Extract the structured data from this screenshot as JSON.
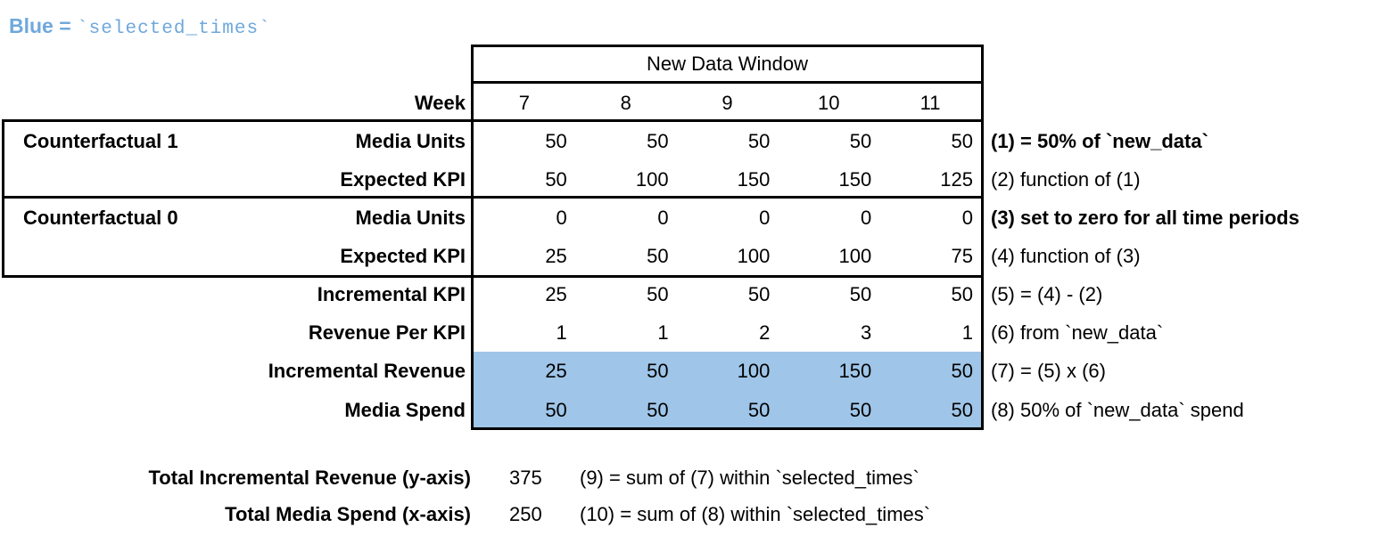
{
  "legend": {
    "blue_label": "Blue = ",
    "blue_code": "`selected_times`"
  },
  "colors": {
    "title_blue": "#6FA8DC",
    "highlight_blue": "#9FC5E8",
    "border": "#000000"
  },
  "table": {
    "window_header": "New Data Window",
    "week_label": "Week",
    "weeks": [
      "7",
      "8",
      "9",
      "10",
      "11"
    ],
    "groups": [
      {
        "label": "Counterfactual 1"
      },
      {
        "label": "Counterfactual 0"
      }
    ],
    "rows": [
      {
        "label": "Media Units",
        "cells": [
          "50",
          "50",
          "50",
          "50",
          "50"
        ],
        "annotation": "(1) = 50% of `new_data`"
      },
      {
        "label": "Expected KPI",
        "cells": [
          "50",
          "100",
          "150",
          "150",
          "125"
        ],
        "annotation": "(2) function of (1)"
      },
      {
        "label": "Media Units",
        "cells": [
          "0",
          "0",
          "0",
          "0",
          "0"
        ],
        "annotation": "(3) set to zero for all time periods"
      },
      {
        "label": "Expected KPI",
        "cells": [
          "25",
          "50",
          "100",
          "100",
          "75"
        ],
        "annotation": "(4) function of (3)"
      },
      {
        "label": "Incremental KPI",
        "cells": [
          "25",
          "50",
          "50",
          "50",
          "50"
        ],
        "annotation": "(5) = (4) - (2)"
      },
      {
        "label": "Revenue Per KPI",
        "cells": [
          "1",
          "1",
          "2",
          "3",
          "1"
        ],
        "annotation": "(6) from `new_data`"
      },
      {
        "label": "Incremental Revenue",
        "cells": [
          "25",
          "50",
          "100",
          "150",
          "50"
        ],
        "annotation": "(7) = (5) x (6)"
      },
      {
        "label": "Media Spend",
        "cells": [
          "50",
          "50",
          "50",
          "50",
          "50"
        ],
        "annotation": "(8) 50% of `new_data` spend"
      }
    ]
  },
  "totals": [
    {
      "label": "Total Incremental Revenue (y-axis)",
      "value": "375",
      "annotation": "(9) = sum of (7) within `selected_times`"
    },
    {
      "label": "Total Media Spend (x-axis)",
      "value": "250",
      "annotation": "(10) = sum of (8) within `selected_times`"
    }
  ]
}
